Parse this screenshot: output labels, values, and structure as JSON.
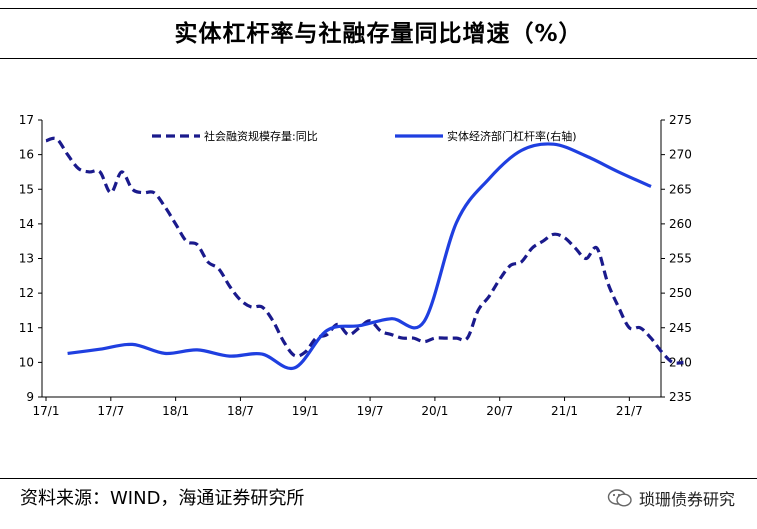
{
  "header": {
    "title": "实体杠杆率与社融存量同比增速（%）"
  },
  "footer": {
    "source": "资料来源：WIND，海通证券研究所",
    "watermark": "琐珊债券研究"
  },
  "chart_data": {
    "type": "line",
    "title": "实体杠杆率与社融存量同比增速（%）",
    "x_ticks": [
      "17/1",
      "17/7",
      "18/1",
      "18/7",
      "19/1",
      "19/7",
      "20/1",
      "20/7",
      "21/1",
      "21/7"
    ],
    "y_left": {
      "min": 9,
      "max": 17,
      "ticks": [
        "17",
        "16",
        "15",
        "14",
        "13",
        "12",
        "11",
        "10",
        "9"
      ]
    },
    "y_right": {
      "min": 235,
      "max": 275,
      "ticks": [
        "275",
        "270",
        "265",
        "260",
        "255",
        "250",
        "245",
        "240",
        "235"
      ]
    },
    "series": [
      {
        "name": "社会融资规模存量:同比",
        "axis": "left",
        "style": "dashed",
        "color": "#1A1A8C",
        "points": [
          [
            0,
            16.4
          ],
          [
            1,
            16.45
          ],
          [
            2,
            16.0
          ],
          [
            3,
            15.6
          ],
          [
            4,
            15.5
          ],
          [
            5,
            15.5
          ],
          [
            6,
            14.9
          ],
          [
            7,
            15.5
          ],
          [
            8,
            15.0
          ],
          [
            9,
            14.9
          ],
          [
            10,
            14.9
          ],
          [
            11,
            14.5
          ],
          [
            12,
            14.0
          ],
          [
            13,
            13.5
          ],
          [
            14,
            13.4
          ],
          [
            15,
            12.9
          ],
          [
            16,
            12.7
          ],
          [
            17,
            12.2
          ],
          [
            18,
            11.8
          ],
          [
            19,
            11.6
          ],
          [
            20,
            11.6
          ],
          [
            21,
            11.2
          ],
          [
            22,
            10.6
          ],
          [
            23,
            10.2
          ],
          [
            24,
            10.3
          ],
          [
            25,
            10.7
          ],
          [
            26,
            10.8
          ],
          [
            27,
            11.1
          ],
          [
            28,
            10.8
          ],
          [
            29,
            11.0
          ],
          [
            30,
            11.2
          ],
          [
            31,
            10.9
          ],
          [
            32,
            10.8
          ],
          [
            33,
            10.7
          ],
          [
            34,
            10.7
          ],
          [
            35,
            10.6
          ],
          [
            36,
            10.7
          ],
          [
            37,
            10.7
          ],
          [
            38,
            10.7
          ],
          [
            39,
            10.7
          ],
          [
            40,
            11.5
          ],
          [
            41,
            11.9
          ],
          [
            42,
            12.4
          ],
          [
            43,
            12.8
          ],
          [
            44,
            12.9
          ],
          [
            45,
            13.3
          ],
          [
            46,
            13.5
          ],
          [
            47,
            13.7
          ],
          [
            48,
            13.6
          ],
          [
            49,
            13.3
          ],
          [
            50,
            13.0
          ],
          [
            51,
            13.3
          ],
          [
            52,
            12.3
          ],
          [
            53,
            11.6
          ],
          [
            54,
            11.0
          ],
          [
            55,
            11.0
          ],
          [
            56,
            10.7
          ],
          [
            57,
            10.3
          ],
          [
            58,
            10.0
          ],
          [
            59,
            10.0
          ]
        ]
      },
      {
        "name": "实体经济部门杠杆率(右轴)",
        "axis": "right",
        "style": "solid",
        "color": "#1F3FE0",
        "points": [
          [
            2,
            241.3
          ],
          [
            5,
            241.9
          ],
          [
            8,
            242.6
          ],
          [
            11,
            241.3
          ],
          [
            14,
            241.8
          ],
          [
            17,
            240.9
          ],
          [
            20,
            241.2
          ],
          [
            23,
            239.2
          ],
          [
            26,
            244.6
          ],
          [
            29,
            245.3
          ],
          [
            32,
            246.3
          ],
          [
            35,
            245.9
          ],
          [
            38,
            260.2
          ],
          [
            41,
            266.5
          ],
          [
            44,
            270.6
          ],
          [
            47,
            271.5
          ],
          [
            50,
            269.8
          ],
          [
            53,
            267.5
          ],
          [
            56,
            265.4
          ]
        ]
      }
    ]
  }
}
